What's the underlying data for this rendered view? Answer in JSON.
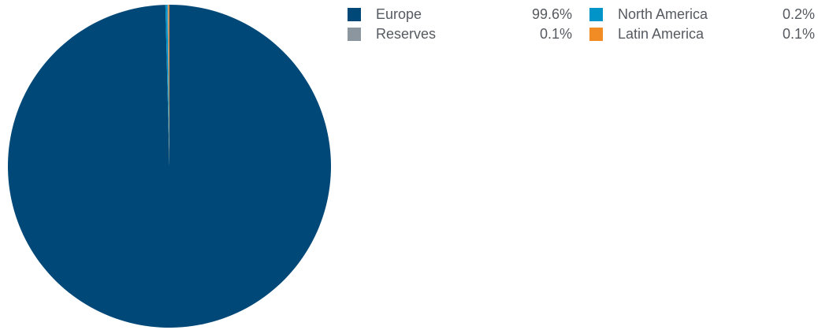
{
  "chart_data": {
    "type": "pie",
    "slices": [
      {
        "label": "Europe",
        "value": 99.6,
        "display": "99.6%",
        "color": "#004877"
      },
      {
        "label": "North America",
        "value": 0.2,
        "display": "0.2%",
        "color": "#0094c9"
      },
      {
        "label": "Reserves",
        "value": 0.1,
        "display": "0.1%",
        "color": "#8c969f"
      },
      {
        "label": "Latin America",
        "value": 0.1,
        "display": "0.1%",
        "color": "#f18b23"
      }
    ],
    "legend_position": "top-right"
  },
  "legend": [
    {
      "label": "Europe",
      "value": "99.6%",
      "color": "#004877"
    },
    {
      "label": "North America",
      "value": "0.2%",
      "color": "#0094c9"
    },
    {
      "label": "Reserves",
      "value": "0.1%",
      "color": "#8c969f"
    },
    {
      "label": "Latin America",
      "value": "0.1%",
      "color": "#f18b23"
    }
  ]
}
